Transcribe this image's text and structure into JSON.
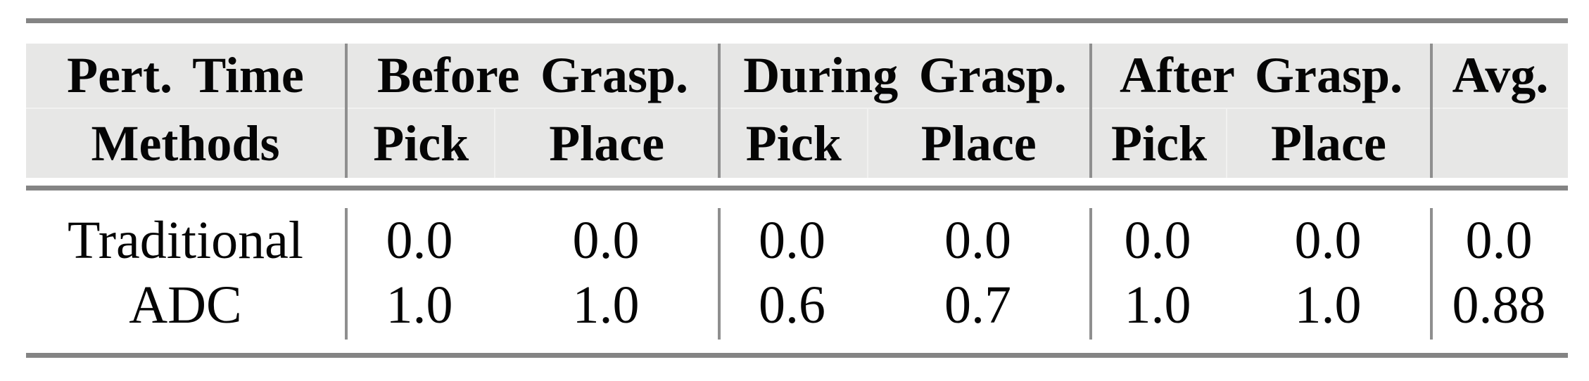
{
  "colors": {
    "rule_gray": "#848484",
    "divider_gray": "#8f8f8f",
    "header_background": "#e7e7e6",
    "header_seam": "#f1f1f0",
    "text": "#050505",
    "page_background": "#ffffff"
  },
  "header": {
    "pert_time": "Pert. Time",
    "methods": "Methods",
    "groups": [
      {
        "label": "Before Grasp.",
        "pick": "Pick",
        "place": "Place"
      },
      {
        "label": "During Grasp.",
        "pick": "Pick",
        "place": "Place"
      },
      {
        "label": "After Grasp.",
        "pick": "Pick",
        "place": "Place"
      }
    ],
    "avg": "Avg."
  },
  "rows": [
    {
      "method": "Traditional",
      "values": [
        "0.0",
        "0.0",
        "0.0",
        "0.0",
        "0.0",
        "0.0"
      ],
      "avg": "0.0"
    },
    {
      "method": "ADC",
      "values": [
        "1.0",
        "1.0",
        "0.6",
        "0.7",
        "1.0",
        "1.0"
      ],
      "avg": "0.88"
    }
  ],
  "chart_data": {
    "type": "table",
    "columns": [
      "Pert. Time / Methods",
      "Before Grasp. Pick",
      "Before Grasp. Place",
      "During Grasp. Pick",
      "During Grasp. Place",
      "After Grasp. Pick",
      "After Grasp. Place",
      "Avg."
    ],
    "rows": [
      [
        "Traditional",
        0.0,
        0.0,
        0.0,
        0.0,
        0.0,
        0.0,
        0.0
      ],
      [
        "ADC",
        1.0,
        1.0,
        0.6,
        0.7,
        1.0,
        1.0,
        0.88
      ]
    ]
  }
}
